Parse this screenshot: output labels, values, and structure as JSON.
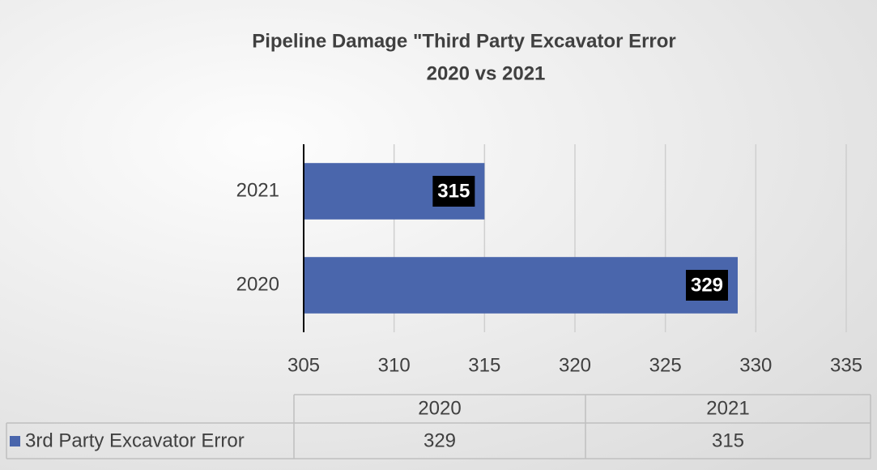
{
  "chart_data": {
    "type": "bar",
    "orientation": "horizontal",
    "title": "Pipeline Damage \"Third Party Excavator Error",
    "subtitle": "2020 vs 2021",
    "categories": [
      "2020",
      "2021"
    ],
    "series": [
      {
        "name": "3rd Party Excavator Error",
        "color": "#4a66ac",
        "values": [
          329,
          315
        ]
      }
    ],
    "xlim": [
      305,
      335
    ],
    "xticks": [
      305,
      310,
      315,
      320,
      325,
      330,
      335
    ],
    "grid": true
  }
}
